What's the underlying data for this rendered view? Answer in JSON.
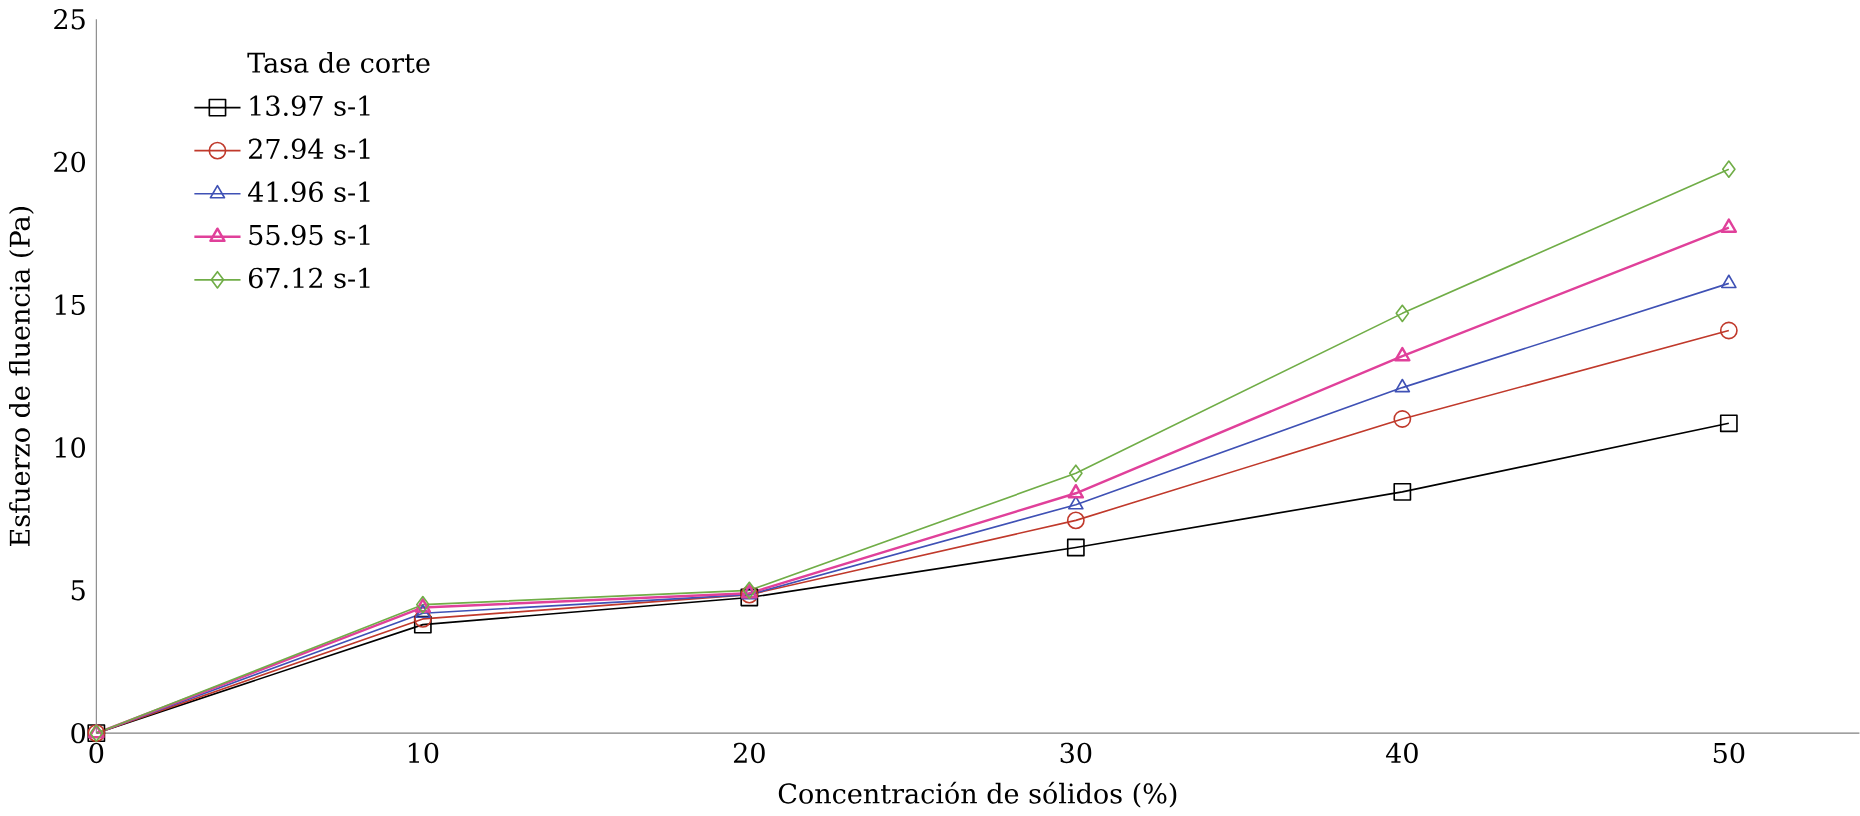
{
  "chart_data": {
    "type": "line",
    "xlabel": "Concentración de sólidos (%)",
    "ylabel": "Esfuerzo de fluencia (Pa)",
    "legend_title": "Tasa de corte",
    "x": [
      0,
      10,
      20,
      30,
      40,
      50
    ],
    "series": [
      {
        "name": "13.97 s-1",
        "color": "#000000",
        "marker": "square",
        "values": [
          0,
          3.8,
          4.75,
          6.5,
          8.45,
          10.85
        ]
      },
      {
        "name": "27.94 s-1",
        "color": "#c0392b",
        "marker": "circle",
        "values": [
          0,
          4.0,
          4.85,
          7.45,
          11.0,
          14.1
        ]
      },
      {
        "name": "41.96 s-1",
        "color": "#3f51b5",
        "marker": "triangle",
        "values": [
          0,
          4.2,
          4.85,
          8.0,
          12.1,
          15.75
        ]
      },
      {
        "name": "55.95 s-1",
        "color": "#e0409a",
        "marker": "triangle",
        "values": [
          0,
          4.4,
          4.9,
          8.4,
          13.2,
          17.7
        ]
      },
      {
        "name": "67.12 s-1",
        "color": "#70ad47",
        "marker": "diamond",
        "values": [
          0,
          4.5,
          5.0,
          9.1,
          14.7,
          19.75
        ]
      }
    ],
    "xlim": [
      0,
      54
    ],
    "ylim": [
      0,
      25
    ],
    "xticks": [
      0,
      10,
      20,
      30,
      40,
      50
    ],
    "yticks": [
      0,
      5,
      10,
      15,
      20,
      25
    ],
    "grid": false,
    "legend": "top left",
    "line_style": "solid"
  }
}
